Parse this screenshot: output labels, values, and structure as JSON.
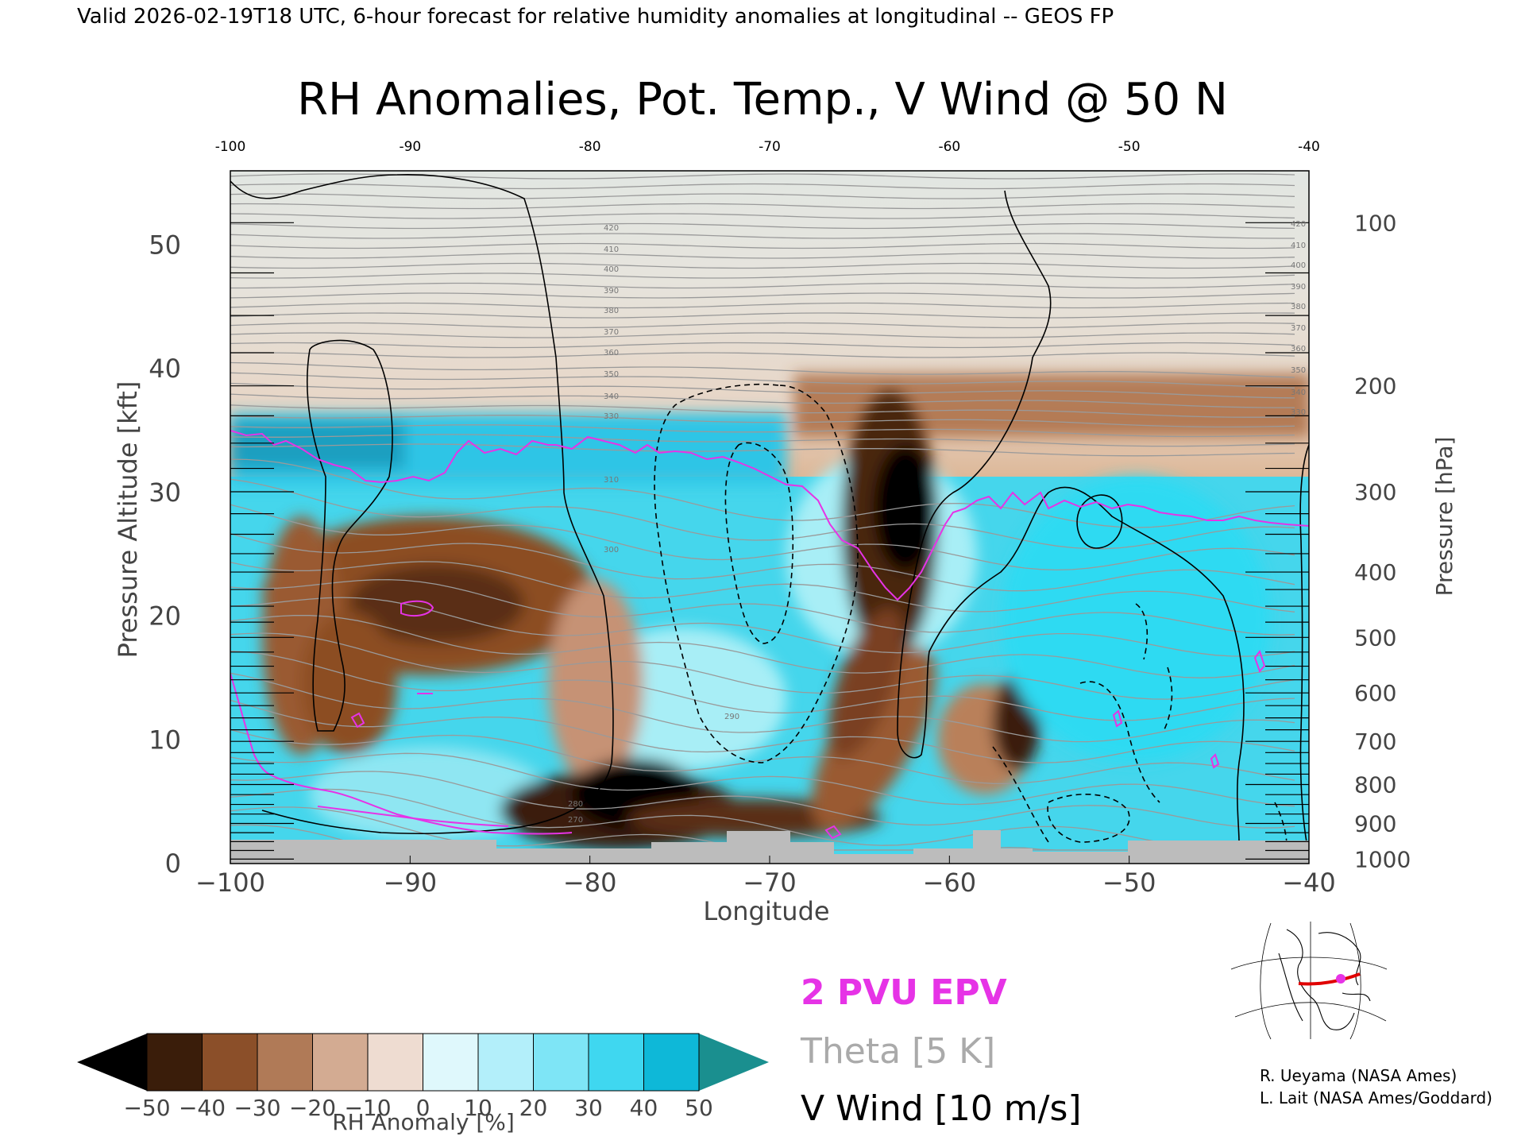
{
  "header": {
    "valid_line": "Valid 2026-02-19T18 UTC, 6-hour forecast for relative humidity anomalies at longitudinal -- GEOS FP",
    "title": "RH Anomalies, Pot. Temp., V Wind @ 50 N"
  },
  "axes": {
    "xlabel": "Longitude",
    "ylabel_left": "Pressure Altitude [kft]",
    "ylabel_right": "Pressure [hPa]",
    "x_ticks": [
      "−100",
      "−90",
      "−80",
      "−70",
      "−60",
      "−50",
      "−40"
    ],
    "x_ticks_top": [
      "-100",
      "-90",
      "-80",
      "-70",
      "-60",
      "-50",
      "-40"
    ],
    "y_ticks_left": [
      "0",
      "10",
      "20",
      "30",
      "40",
      "50"
    ],
    "y_ticks_right": [
      "1000",
      "900",
      "800",
      "700",
      "600",
      "500",
      "400",
      "300",
      "200",
      "100"
    ]
  },
  "colorbar": {
    "label": "RH Anomaly [%]",
    "tick_labels": [
      "−50",
      "−40",
      "−30",
      "−20",
      "−10",
      "0",
      "10",
      "20",
      "30",
      "40",
      "50"
    ]
  },
  "legend": {
    "epv": "2 PVU EPV",
    "theta": "Theta [5 K]",
    "vwind": "V Wind [10 m/s]"
  },
  "theta_labels": [
    "420",
    "410",
    "400",
    "390",
    "380",
    "370",
    "360",
    "350",
    "340",
    "330",
    "310",
    "300",
    "290",
    "280",
    "270"
  ],
  "credits": {
    "line1": "R. Ueyama (NASA Ames)",
    "line2": "L. Lait (NASA Ames/Goddard)"
  },
  "colors": {
    "epv": "#e633e6",
    "theta": "#9a9a9a",
    "vwind": "#000000",
    "dry_extreme": "#000000",
    "moist_extreme": "#1a8f8f",
    "terrain": "#bcbcbc"
  },
  "chart_data": {
    "type": "heatmap",
    "title": "RH Anomalies, Pot. Temp., V Wind @ 50 N",
    "xlabel": "Longitude",
    "ylabel": "Pressure Altitude [kft]",
    "xlim": [
      -100,
      -40
    ],
    "ylim": [
      0,
      56
    ],
    "colorbar_range": [
      -50,
      50
    ],
    "colorbar_step": 10,
    "theta_contour_interval_K": 5,
    "vwind_contour_interval_ms": 10,
    "pressure_levels_hPa": [
      1000,
      900,
      800,
      700,
      600,
      500,
      400,
      300,
      200,
      100
    ],
    "x_ticks": [
      -100,
      -90,
      -80,
      -70,
      -60,
      -50,
      -40
    ],
    "y_ticks": [
      0,
      10,
      20,
      30,
      40,
      50
    ]
  }
}
